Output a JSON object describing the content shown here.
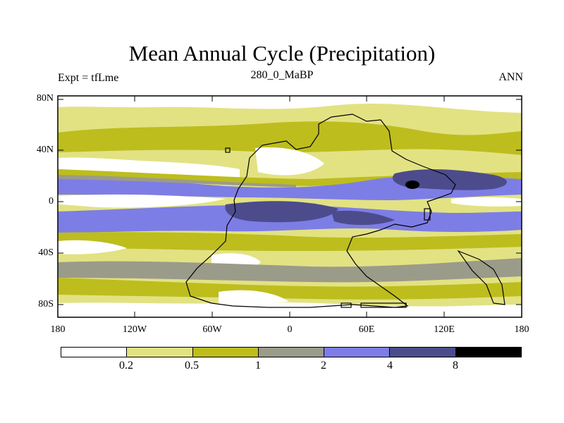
{
  "plot": {
    "title": "Mean Annual Cycle (Precipitation)",
    "left_label": "Expt = tfLme",
    "center_label": "280_0_MaBP",
    "right_label": "ANN"
  },
  "axes": {
    "lat_labels": [
      "80N",
      "40N",
      "0",
      "40S",
      "80S"
    ],
    "lon_labels": [
      "180",
      "120W",
      "60W",
      "0",
      "60E",
      "120E",
      "180"
    ]
  },
  "colorbar": {
    "levels": [
      "0.2",
      "0.5",
      "1",
      "2",
      "4",
      "8"
    ],
    "colors": [
      "#ffffff",
      "#e2e283",
      "#bdbd1e",
      "#9b9b8a",
      "#7d7de6",
      "#4c4c8c",
      "#000000"
    ]
  }
}
